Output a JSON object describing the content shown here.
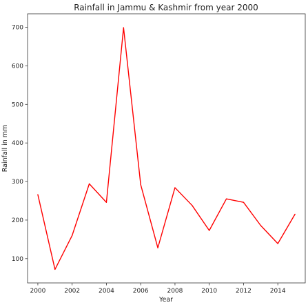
{
  "chart_data": {
    "type": "line",
    "title": "Rainfall in Jammu & Kashmir from year 2000",
    "xlabel": "Year",
    "ylabel": "Rainfall in mm",
    "xlim": [
      1999.4,
      2015.6
    ],
    "ylim": [
      37,
      735
    ],
    "xticks": [
      2000,
      2002,
      2004,
      2006,
      2008,
      2010,
      2012,
      2014
    ],
    "yticks": [
      100,
      200,
      300,
      400,
      500,
      600,
      700
    ],
    "grid": false,
    "series": [
      {
        "color": "#ff0000",
        "x": [
          2000,
          2001,
          2002,
          2003,
          2004,
          2005,
          2006,
          2007,
          2008,
          2009,
          2010,
          2011,
          2012,
          2013,
          2014,
          2015
        ],
        "y": [
          266,
          72,
          160,
          294,
          246,
          699,
          292,
          128,
          284,
          238,
          173,
          255,
          246,
          186,
          139,
          215
        ]
      }
    ]
  }
}
